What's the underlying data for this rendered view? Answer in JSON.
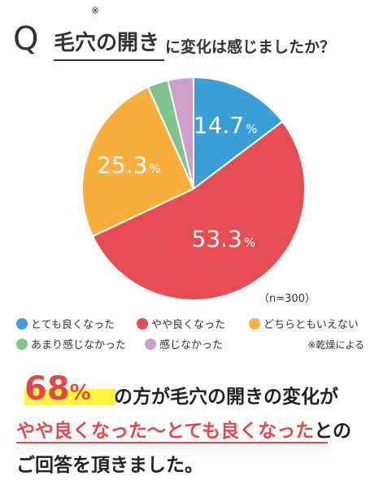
{
  "question": {
    "letter": "Q",
    "mark": "※",
    "strong": "毛穴の開き",
    "rest": "に変化は感じましたか？"
  },
  "chart_data": {
    "type": "pie",
    "title": "毛穴の開きに変化は感じましたか？",
    "sample_note": "（n=300）",
    "categories": [
      "とても良くなった",
      "やや良くなった",
      "どちらともいえない",
      "あまり感じなかった",
      "感じなかった"
    ],
    "values": [
      14.7,
      53.3,
      25.3,
      3.0,
      3.7
    ],
    "labels": [
      "14.7",
      "53.3",
      "25.3",
      "",
      ""
    ],
    "unit": "%",
    "colors": [
      "#3a9fd9",
      "#e54d52",
      "#f9af3c",
      "#7fc48f",
      "#cf9fcb"
    ],
    "start": "12 o'clock",
    "direction": "clockwise",
    "legend_position": "bottom"
  },
  "legend": {
    "items": [
      {
        "label": "とても良くなった",
        "color": "#3a9fd9"
      },
      {
        "label": "やや良くなった",
        "color": "#e54d52"
      },
      {
        "label": "どちらともいえない",
        "color": "#f9af3c"
      },
      {
        "label": "あまり感じなかった",
        "color": "#7fc48f"
      },
      {
        "label": "感じなかった",
        "color": "#cf9fcb"
      }
    ],
    "footnote": "※乾燥による"
  },
  "summary": {
    "pct": "68",
    "pct_sign": "%",
    "line1": "の方が毛穴の開きの変化が",
    "line2_red": "やや良くなった〜とても良くなった",
    "line2_rest": "との",
    "line3": "ご回答を頂きました。"
  }
}
